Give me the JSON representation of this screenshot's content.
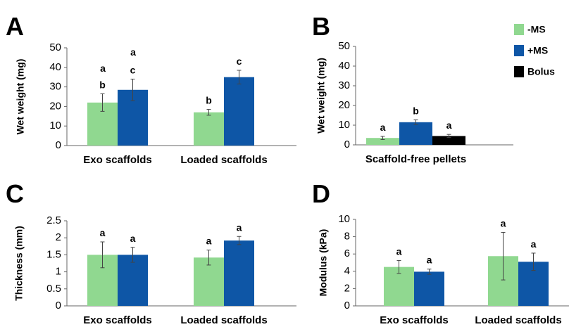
{
  "legend": {
    "items": [
      {
        "label": "-MS",
        "color": "#90D890"
      },
      {
        "label": "+MS",
        "color": "#0E56A6"
      },
      {
        "label": "Bolus",
        "color": "#000000"
      }
    ]
  },
  "chart_data": [
    {
      "panel": "A",
      "type": "bar",
      "ylabel": "Wet weight (mg)",
      "ylim": [
        0,
        50
      ],
      "yticks": [
        "0",
        "10",
        "20",
        "30",
        "40",
        "50"
      ],
      "categories": [
        "Exo scaffolds",
        "Loaded scaffolds"
      ],
      "series": [
        {
          "name": "-MS",
          "values": [
            22,
            17
          ],
          "errors": [
            4.5,
            1.5
          ],
          "labels": [
            "b",
            "b"
          ]
        },
        {
          "name": "+MS",
          "values": [
            28.5,
            35
          ],
          "errors": [
            5.5,
            3.5
          ],
          "labels": [
            "c",
            "c"
          ]
        }
      ],
      "group_labels": [
        "a",
        "a"
      ]
    },
    {
      "panel": "B",
      "type": "bar",
      "ylabel": "Wet weight (mg)",
      "ylim": [
        0,
        50
      ],
      "yticks": [
        "0",
        "10",
        "20",
        "30",
        "40",
        "50"
      ],
      "categories": [
        "Scaffold-free pellets"
      ],
      "series": [
        {
          "name": "-MS",
          "values": [
            3.5
          ],
          "errors": [
            0.8
          ],
          "labels": [
            "a"
          ]
        },
        {
          "name": "+MS",
          "values": [
            11.5
          ],
          "errors": [
            1.2
          ],
          "labels": [
            "b"
          ]
        },
        {
          "name": "Bolus",
          "values": [
            4.5
          ],
          "errors": [
            0.8
          ],
          "labels": [
            "a"
          ]
        }
      ]
    },
    {
      "panel": "C",
      "type": "bar",
      "ylabel": "Thickness (mm)",
      "ylim": [
        0,
        2.5
      ],
      "yticks": [
        "0",
        "0.5",
        "1",
        "1.5",
        "2",
        "2.5"
      ],
      "categories": [
        "Exo scaffolds",
        "Loaded scaffolds"
      ],
      "series": [
        {
          "name": "-MS",
          "values": [
            1.5,
            1.42
          ],
          "errors": [
            0.38,
            0.22
          ],
          "labels": [
            "a",
            "a"
          ]
        },
        {
          "name": "+MS",
          "values": [
            1.5,
            1.92
          ],
          "errors": [
            0.22,
            0.12
          ],
          "labels": [
            "a",
            "a"
          ]
        }
      ]
    },
    {
      "panel": "D",
      "type": "bar",
      "ylabel": "Modulus (kPa)",
      "ylim": [
        0,
        10
      ],
      "yticks": [
        "0",
        "2",
        "4",
        "6",
        "8",
        "10"
      ],
      "categories": [
        "Exo scaffolds",
        "Loaded scaffolds"
      ],
      "series": [
        {
          "name": "-MS",
          "values": [
            4.5,
            5.75
          ],
          "errors": [
            0.75,
            2.75
          ],
          "labels": [
            "a",
            "a"
          ]
        },
        {
          "name": "+MS",
          "values": [
            3.95,
            5.1
          ],
          "errors": [
            0.3,
            1.0
          ],
          "labels": [
            "a",
            "a"
          ]
        }
      ]
    }
  ]
}
